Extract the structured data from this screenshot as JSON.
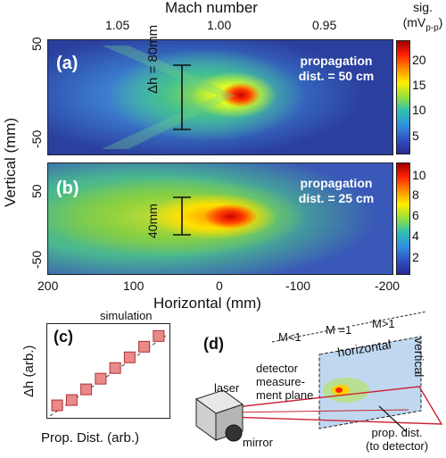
{
  "top_axis": {
    "title": "Mach number",
    "ticks": [
      "1.05",
      "1.00",
      "0.95"
    ],
    "tick_x": [
      150,
      246,
      342
    ]
  },
  "panel_a": {
    "tag": "(a)",
    "prop_line1": "propagation",
    "prop_line2": "dist. = 50 cm",
    "dh_label": "Δh = 80mm",
    "colorbar_title_line1": "sig.",
    "colorbar_title_line2": "(mV",
    "colorbar_title_sub": "p-p",
    "colorbar_title_end": ")",
    "colorbar_ticks": [
      "20",
      "15",
      "10",
      "5"
    ]
  },
  "panel_b": {
    "tag": "(b)",
    "prop_line1": "propagation",
    "prop_line2": "dist. = 25 cm",
    "dh_label": "40mm",
    "colorbar_ticks": [
      "10",
      "8",
      "6",
      "4",
      "2"
    ]
  },
  "y_axis": {
    "title": "Vertical (mm)",
    "ticks_a": [
      "50",
      "-50"
    ],
    "ticks_b": [
      "50",
      "-50"
    ]
  },
  "x_axis": {
    "title": "Horizontal (mm)",
    "ticks": [
      "200",
      "100",
      "0",
      "-100",
      "-200"
    ]
  },
  "panel_c": {
    "tag": "(c)",
    "title": "simulation",
    "ylabel": "Δh (arb.)",
    "xlabel": "Prop. Dist. (arb.)"
  },
  "panel_d": {
    "tag": "(d)",
    "m_less": "M<1",
    "m_eq": "M =1",
    "m_greater": "M>1",
    "horizontal": "horizontal",
    "vertical": "vertical",
    "detector_line1": "detector",
    "detector_line2": "measure-",
    "detector_line3": "ment plane",
    "laser": "laser",
    "mirror": "mirror",
    "prop_line1": "prop. dist.",
    "prop_line2": "(to detector)"
  },
  "chart_data": [
    {
      "type": "heatmap",
      "panel": "(a)",
      "xlabel": "Horizontal (mm)",
      "ylabel": "Vertical (mm)",
      "xlim": [
        200,
        -200
      ],
      "ylim": [
        -75,
        75
      ],
      "colorbar_range": [
        2,
        23
      ],
      "colorbar_label": "sig. (mVp-p)",
      "peak_position": [
        -10,
        0
      ],
      "peak_value": 22
    },
    {
      "type": "heatmap",
      "panel": "(b)",
      "xlabel": "Horizontal (mm)",
      "ylabel": "Vertical (mm)",
      "xlim": [
        200,
        -200
      ],
      "ylim": [
        -75,
        75
      ],
      "colorbar_range": [
        1.5,
        11
      ],
      "colorbar_label": "sig. (mVp-p)",
      "peak_position": [
        -5,
        0
      ],
      "peak_value": 10
    },
    {
      "type": "scatter",
      "panel": "(c)",
      "title": "simulation",
      "xlabel": "Prop. Dist. (arb.)",
      "ylabel": "Δh (arb.)",
      "x": [
        1,
        2,
        3,
        4,
        5,
        6,
        7,
        8
      ],
      "values": [
        1,
        1.5,
        2.5,
        3.5,
        4.5,
        5.5,
        6.5,
        7.5
      ],
      "fit": "linear"
    }
  ]
}
